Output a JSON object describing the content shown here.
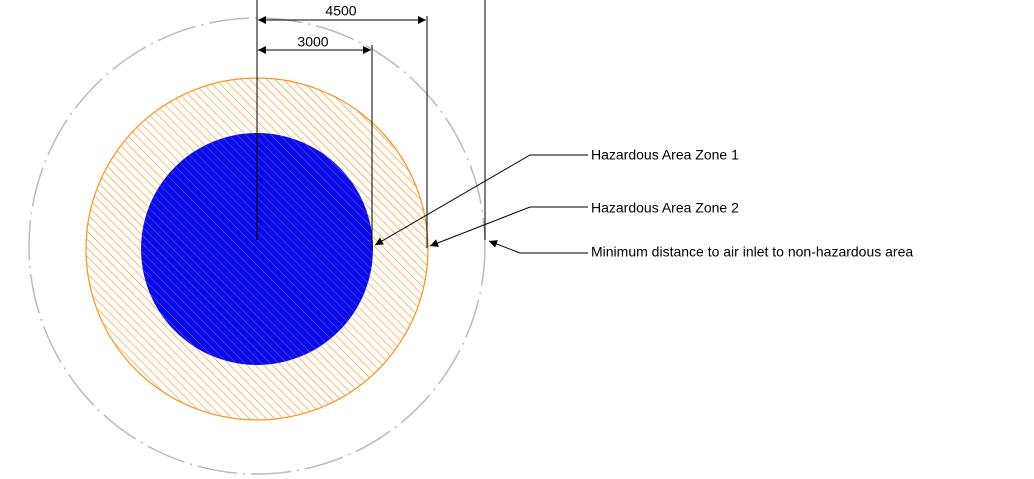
{
  "dimensions": [
    "4500",
    "3000"
  ],
  "labels": [
    "Hazardous Area Zone 1",
    "Hazardous Area Zone 2",
    "Minimum distance to air inlet to non-hazardous area"
  ]
}
